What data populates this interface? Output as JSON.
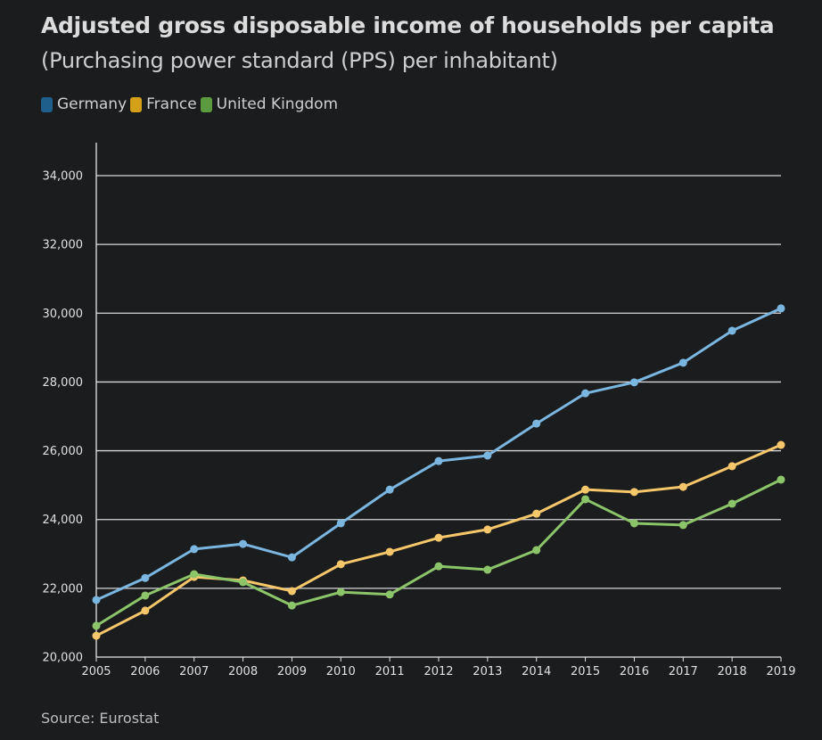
{
  "chart_data": {
    "type": "line",
    "title": "Adjusted gross disposable income of households per capita",
    "subtitle": "(Purchasing power standard (PPS) per inhabitant)",
    "source": "Source: Eurostat",
    "x": [
      2005,
      2006,
      2007,
      2008,
      2009,
      2010,
      2011,
      2012,
      2013,
      2014,
      2015,
      2016,
      2017,
      2018,
      2019
    ],
    "ylim": [
      20000,
      34000
    ],
    "yticks": [
      20000,
      22000,
      24000,
      26000,
      28000,
      30000,
      32000,
      34000
    ],
    "ytick_labels": [
      "20,000",
      "22,000",
      "24,000",
      "26,000",
      "28,000",
      "30,000",
      "32,000",
      "34,000"
    ],
    "grid": "horizontal",
    "legend_position": "top-left",
    "series": [
      {
        "name": "Germany",
        "color": "#7ab6e0",
        "legend_color": "#1f5f8b",
        "values": [
          21660,
          22300,
          23140,
          23290,
          22900,
          23890,
          24870,
          25700,
          25860,
          26790,
          27670,
          27990,
          28560,
          29490,
          30140
        ]
      },
      {
        "name": "France",
        "color": "#f5c76a",
        "legend_color": "#d4a017",
        "values": [
          20620,
          21350,
          22330,
          22230,
          21920,
          22700,
          23060,
          23470,
          23710,
          24170,
          24870,
          24800,
          24950,
          25550,
          26170
        ]
      },
      {
        "name": "United Kingdom",
        "color": "#8cc46a",
        "legend_color": "#5b9a3f",
        "values": [
          20910,
          21790,
          22410,
          22180,
          21500,
          21890,
          21820,
          22640,
          22540,
          23110,
          24590,
          23890,
          23840,
          24460,
          25160
        ]
      }
    ]
  }
}
